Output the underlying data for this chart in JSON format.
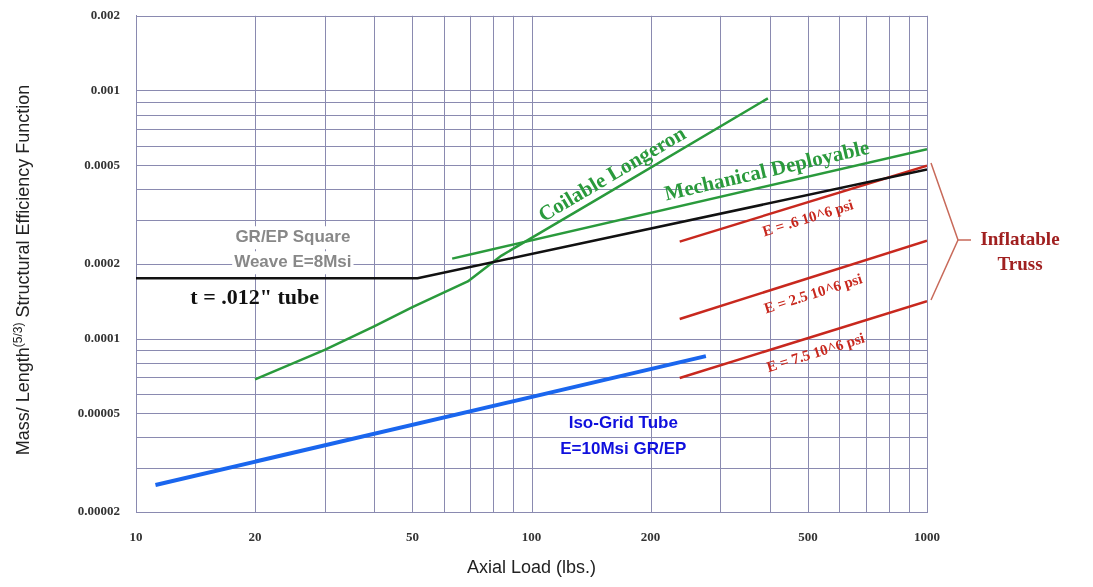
{
  "chart_data": {
    "type": "line",
    "xlabel": "Axial Load (lbs.)",
    "ylabel": "Mass/ Length$^{(5/3)}$  Structural Efficiency Function",
    "log": "xy",
    "grid": true,
    "legend": false,
    "marker": "none",
    "line_style": "solid",
    "xlim": [
      10,
      1000
    ],
    "xticks": [
      10,
      20,
      50,
      100,
      200,
      500,
      1000
    ],
    "ylim": [
      2e-05,
      0.002
    ],
    "yticks": [
      {
        "value": 2e-05,
        "label": "0.00002"
      },
      {
        "value": 5e-05,
        "label": "0.00005"
      },
      0.0001,
      0.0002,
      0.0005,
      0.001,
      0.002
    ],
    "series": [
      {
        "name": "t = .012\" tube",
        "color": "#111111",
        "x": [
          10,
          51.5,
          1000
        ],
        "values": [
          0.000175,
          0.000175,
          0.00048
        ]
      },
      {
        "name": "Coilable Longeron",
        "color": "#2a9a3c",
        "x": [
          20,
          30,
          40,
          50,
          69,
          84,
          149,
          396
        ],
        "values": [
          6.85e-05,
          9e-05,
          0.000112,
          0.000134,
          0.00017,
          0.000216,
          0.00037,
          0.00093
        ]
      },
      {
        "name": "Mechanical Deployable",
        "color": "#2a9a3c",
        "x": [
          63,
          1000
        ],
        "values": [
          0.00021,
          0.00058
        ]
      },
      {
        "name": "E = .6 10^6 psi",
        "color": "#c8281e",
        "x": [
          237,
          1000
        ],
        "values": [
          0.000246,
          0.000498
        ]
      },
      {
        "name": "E = 2.5 10^6 psi",
        "color": "#c8281e",
        "x": [
          237,
          1000
        ],
        "values": [
          0.00012,
          0.000248
        ]
      },
      {
        "name": "E = 7.5 10^6 psi",
        "color": "#c8281e",
        "x": [
          237,
          1000
        ],
        "values": [
          6.94e-05,
          0.0001415
        ]
      },
      {
        "name": "Iso-Grid Tube\nE=10Msi GR/EP",
        "color": "#1a66ee",
        "x": [
          11.2,
          276
        ],
        "values": [
          2.57e-05,
          8.5e-05
        ]
      }
    ],
    "annotations": [
      {
        "text": "GR/EP Square\nWeave E=8Msi",
        "x": 28,
        "y": 0.000175
      },
      {
        "text": "Inflatable\nTruss",
        "x": 1000,
        "y": 0.00025
      }
    ]
  }
}
